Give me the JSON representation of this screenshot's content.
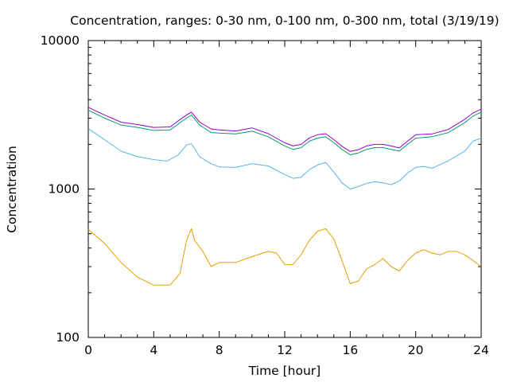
{
  "chart_data": {
    "type": "line",
    "title": "Concentration, ranges: 0-30 nm, 0-100 nm, 0-300 nm, total (3/19/19)",
    "xlabel": "Time [hour]",
    "ylabel": "Concentration",
    "xlim": [
      0,
      24
    ],
    "ylim": [
      100,
      10000
    ],
    "yscale": "log",
    "grid": false,
    "legend": "none",
    "xticks": [
      0,
      4,
      8,
      12,
      16,
      20,
      24
    ],
    "xtick_labels": [
      "0",
      "4",
      "8",
      "12",
      "16",
      "20",
      "24"
    ],
    "yticks": [
      100,
      1000,
      10000
    ],
    "ytick_labels": [
      "100",
      "1000",
      "10000"
    ],
    "series": [
      {
        "color": "#e69f00",
        "x": [
          0,
          1,
          2,
          3,
          4,
          5,
          5.6,
          6,
          6.3,
          6.5,
          7,
          7.5,
          8,
          9,
          10,
          11,
          11.5,
          12,
          12.5,
          13,
          13.5,
          14,
          14.5,
          15,
          15.5,
          16,
          16.5,
          17,
          17.5,
          18,
          18.5,
          19,
          19.5,
          20,
          20.5,
          21,
          21.5,
          22,
          22.5,
          23,
          23.5,
          24
        ],
        "y": [
          535,
          430,
          320,
          255,
          225,
          225,
          270,
          450,
          540,
          450,
          380,
          300,
          320,
          320,
          350,
          380,
          370,
          310,
          310,
          360,
          450,
          520,
          540,
          460,
          330,
          230,
          240,
          290,
          310,
          340,
          300,
          280,
          330,
          370,
          390,
          370,
          360,
          380,
          380,
          360,
          330,
          300
        ]
      },
      {
        "color": "#56b4e9",
        "x": [
          0,
          1,
          2,
          3,
          4,
          4.8,
          5.5,
          6,
          6.3,
          6.8,
          7.5,
          8,
          9,
          10,
          11,
          12,
          12.5,
          13,
          13.5,
          14,
          14.5,
          15,
          15.5,
          16,
          16.5,
          17,
          17.5,
          18,
          18.5,
          19,
          19.5,
          20,
          20.5,
          21,
          22,
          23,
          23.5,
          24
        ],
        "y": [
          2550,
          2150,
          1800,
          1650,
          1580,
          1540,
          1700,
          1980,
          2020,
          1650,
          1480,
          1410,
          1400,
          1480,
          1430,
          1250,
          1180,
          1200,
          1350,
          1450,
          1510,
          1300,
          1100,
          1000,
          1040,
          1090,
          1120,
          1100,
          1070,
          1130,
          1280,
          1400,
          1420,
          1380,
          1550,
          1800,
          2100,
          2200
        ]
      },
      {
        "color": "#009e73",
        "x": [
          0,
          1,
          2,
          3,
          4,
          5,
          5.6,
          6,
          6.3,
          6.8,
          7.5,
          8,
          9,
          10,
          11,
          12,
          12.5,
          13,
          13.5,
          14,
          14.5,
          15,
          15.5,
          16,
          16.5,
          17,
          17.5,
          18,
          18.5,
          19,
          19.5,
          20,
          21,
          22,
          23,
          23.5,
          24
        ],
        "y": [
          3400,
          3000,
          2700,
          2600,
          2480,
          2500,
          2800,
          3000,
          3150,
          2700,
          2400,
          2380,
          2350,
          2450,
          2250,
          1950,
          1850,
          1900,
          2100,
          2200,
          2250,
          2050,
          1850,
          1700,
          1750,
          1850,
          1900,
          1900,
          1850,
          1800,
          2000,
          2200,
          2250,
          2400,
          2800,
          3100,
          3300
        ]
      },
      {
        "color": "#9400d3",
        "x": [
          0,
          1,
          2,
          3,
          4,
          5,
          5.6,
          6,
          6.3,
          6.8,
          7.5,
          8,
          9,
          10,
          11,
          12,
          12.5,
          13,
          13.5,
          14,
          14.5,
          15,
          15.5,
          16,
          16.5,
          17,
          17.5,
          18,
          18.5,
          19,
          19.5,
          20,
          21,
          22,
          23,
          23.5,
          24
        ],
        "y": [
          3550,
          3150,
          2820,
          2720,
          2600,
          2620,
          2940,
          3150,
          3300,
          2820,
          2540,
          2500,
          2460,
          2580,
          2360,
          2050,
          1950,
          2000,
          2210,
          2320,
          2360,
          2150,
          1940,
          1790,
          1840,
          1950,
          2000,
          2000,
          1950,
          1890,
          2100,
          2320,
          2350,
          2520,
          2950,
          3250,
          3450
        ]
      }
    ]
  }
}
